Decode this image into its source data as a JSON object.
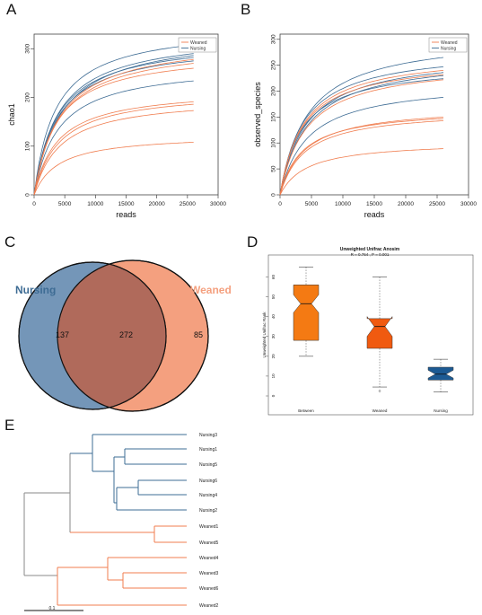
{
  "panels": {
    "A": "A",
    "B": "B",
    "C": "C",
    "D": "D",
    "E": "E"
  },
  "colors": {
    "weaned": "#f07d4f",
    "nursing": "#3e6c94",
    "tree_gray": "#8a8a8a",
    "venn_nursing": "#7496b8",
    "venn_weaned": "#f4a07f",
    "venn_overlap": "#b06a5b",
    "box_between": "#f47a13",
    "box_weaned": "#f05a10",
    "box_nursing": "#1c5a93"
  },
  "chart_data": [
    {
      "type": "line",
      "panel": "A",
      "title": "",
      "xlabel": "reads",
      "ylabel": "chao1",
      "xlim": [
        0,
        30000
      ],
      "ylim": [
        0,
        330
      ],
      "xticks": [
        0,
        5000,
        10000,
        15000,
        20000,
        25000,
        30000
      ],
      "yticks": [
        0,
        100,
        200,
        300
      ],
      "legend": {
        "position": "top-right",
        "entries": [
          "Weaned",
          "Nursing"
        ]
      },
      "x_max": 26000,
      "series": [
        {
          "name": "Nursing",
          "plateau": 308
        },
        {
          "name": "Nursing",
          "plateau": 290
        },
        {
          "name": "Nursing",
          "plateau": 286
        },
        {
          "name": "Nursing",
          "plateau": 282
        },
        {
          "name": "Nursing",
          "plateau": 275
        },
        {
          "name": "Nursing",
          "plateau": 234
        },
        {
          "name": "Weaned",
          "plateau": 278
        },
        {
          "name": "Weaned",
          "plateau": 270
        },
        {
          "name": "Weaned",
          "plateau": 260
        },
        {
          "name": "Weaned",
          "plateau": 191
        },
        {
          "name": "Weaned",
          "plateau": 186
        },
        {
          "name": "Weaned",
          "plateau": 173
        },
        {
          "name": "Weaned",
          "plateau": 108
        }
      ]
    },
    {
      "type": "line",
      "panel": "B",
      "title": "",
      "xlabel": "reads",
      "ylabel": "observed_species",
      "xlim": [
        0,
        30000
      ],
      "ylim": [
        0,
        310
      ],
      "xticks": [
        0,
        5000,
        10000,
        15000,
        20000,
        25000,
        30000
      ],
      "yticks": [
        0,
        50,
        100,
        150,
        200,
        250,
        300
      ],
      "legend": {
        "position": "top-right",
        "entries": [
          "Weaned",
          "Nursing"
        ]
      },
      "x_max": 26000,
      "series": [
        {
          "name": "Nursing",
          "plateau": 265
        },
        {
          "name": "Nursing",
          "plateau": 247
        },
        {
          "name": "Nursing",
          "plateau": 236
        },
        {
          "name": "Nursing",
          "plateau": 230
        },
        {
          "name": "Nursing",
          "plateau": 224
        },
        {
          "name": "Nursing",
          "plateau": 188
        },
        {
          "name": "Weaned",
          "plateau": 240
        },
        {
          "name": "Weaned",
          "plateau": 232
        },
        {
          "name": "Weaned",
          "plateau": 222
        },
        {
          "name": "Weaned",
          "plateau": 150
        },
        {
          "name": "Weaned",
          "plateau": 147
        },
        {
          "name": "Weaned",
          "plateau": 143
        },
        {
          "name": "Weaned",
          "plateau": 89
        }
      ]
    },
    {
      "type": "venn",
      "panel": "C",
      "sets": [
        "Nursing",
        "Weaned"
      ],
      "only_nursing": "137",
      "shared": "272",
      "only_weaned": "85"
    },
    {
      "type": "box",
      "panel": "D",
      "title": "Unweighted Unifrac Anosim",
      "subtitle": "R = 0.764 , P = 0.001",
      "ylabel": "Unweighted Unifrac Rank",
      "ylim": [
        0,
        67
      ],
      "yticks": [
        0,
        10,
        20,
        30,
        40,
        50,
        60
      ],
      "ytick_labels": [
        "0",
        "10",
        "20",
        "30",
        "40",
        "50",
        "60"
      ],
      "categories": [
        "Between",
        "Weaned",
        "Nursing"
      ],
      "boxes": [
        {
          "label": "Between",
          "min": 20,
          "q1": 28,
          "median": 46.5,
          "q3": 56,
          "max": 65,
          "notch_low": 42,
          "notch_high": 51,
          "outliers": []
        },
        {
          "label": "Weaned",
          "min": 4.5,
          "q1": 24,
          "median": 35,
          "q3": 39,
          "max": 60,
          "notch_low": 30,
          "notch_high": 40,
          "outliers": [
            2.5
          ]
        },
        {
          "label": "Nursing",
          "min": 2,
          "q1": 8,
          "median": 11,
          "q3": 14.5,
          "max": 18.5,
          "notch_low": 9,
          "notch_high": 13,
          "outliers": []
        }
      ]
    },
    {
      "type": "dendrogram",
      "panel": "E",
      "leaves": [
        "Nursing3",
        "Nursing1",
        "Nursing5",
        "Nursing6",
        "Nursing4",
        "Nursing2",
        "Weaned1",
        "Weaned5",
        "Weaned4",
        "Weaned3",
        "Weaned6",
        "Weaned2"
      ],
      "scale_bar": "0.1"
    }
  ]
}
